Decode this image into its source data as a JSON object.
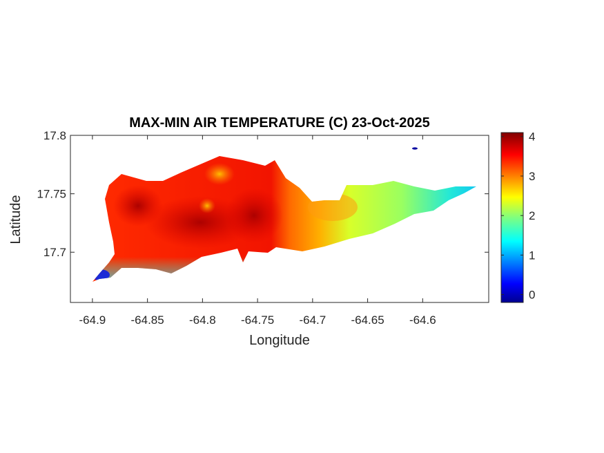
{
  "chart_data": {
    "type": "heatmap",
    "title": "MAX-MIN AIR TEMPERATURE (C) 23-Oct-2025",
    "xlabel": "Longitude",
    "ylabel": "Latitude",
    "xlim": [
      -64.92,
      -64.54
    ],
    "ylim": [
      17.657,
      17.8
    ],
    "xticks": [
      -64.9,
      -64.85,
      -64.8,
      -64.75,
      -64.7,
      -64.65,
      -64.6
    ],
    "xtick_labels": [
      "-64.9",
      "-64.85",
      "-64.8",
      "-64.75",
      "-64.7",
      "-64.65",
      "-64.6"
    ],
    "yticks": [
      17.7,
      17.75,
      17.8
    ],
    "ytick_labels": [
      "17.7",
      "17.75",
      "17.8"
    ],
    "colorbar": {
      "colormap": "jet",
      "range": [
        -0.2,
        4.1
      ],
      "ticks": [
        0,
        1,
        2,
        3,
        4
      ],
      "tick_labels": [
        "0",
        "1",
        "2",
        "3",
        "4"
      ]
    },
    "grid": false,
    "regions": [
      {
        "name": "western interior (lon -64.89 to -64.75)",
        "value": 3.9
      },
      {
        "name": "central core hot spots (lon -64.78 to -64.76)",
        "value": 4.0
      },
      {
        "name": "north central (lon -64.80)",
        "value": 3.5
      },
      {
        "name": "east of center (lon -64.72)",
        "value": 3.0
      },
      {
        "name": "eastern band (lon -64.68)",
        "value": 2.5
      },
      {
        "name": "far east tip (lon -64.57)",
        "value": 1.6
      },
      {
        "name": "southern coast strip",
        "value": 1.8
      },
      {
        "name": "southwest point (lon -64.90, lat 17.68)",
        "value": 0.2
      },
      {
        "name": "buck island (lon -64.625, lat 17.788)",
        "value": 0.1
      }
    ]
  }
}
